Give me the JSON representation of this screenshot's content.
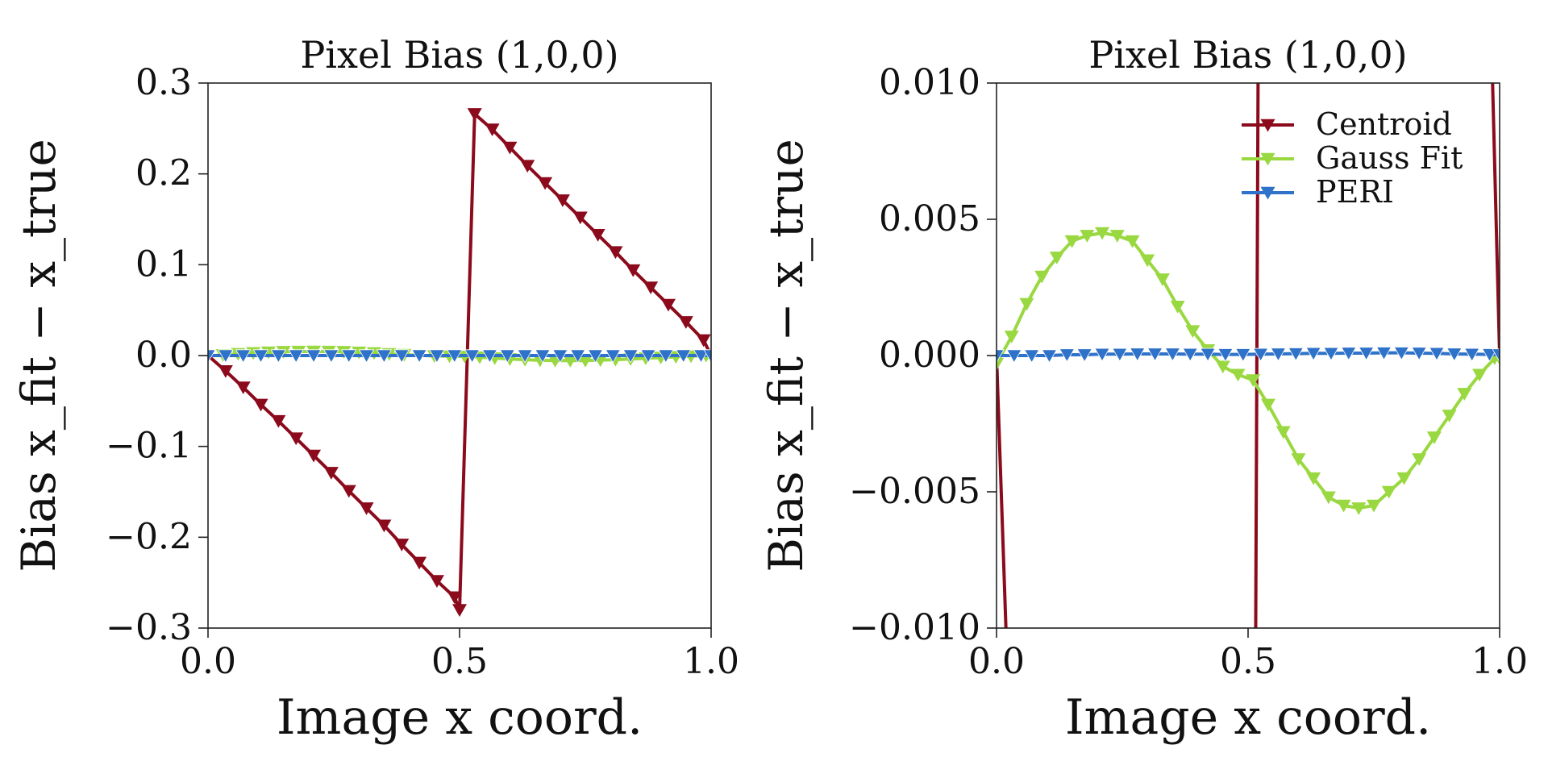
{
  "chart_data": [
    {
      "type": "line",
      "title": "Pixel Bias (1,0,0)",
      "xlabel": "Image x coord.",
      "ylabel": "Bias x_fit − x_true",
      "xlim": [
        0.0,
        1.0
      ],
      "ylim": [
        -0.3,
        0.3
      ],
      "xticks": [
        0.0,
        0.5,
        1.0
      ],
      "xtick_labels": [
        "0.0",
        "0.5",
        "1.0"
      ],
      "yticks": [
        0.3,
        0.2,
        0.1,
        0.0,
        -0.1,
        -0.2,
        -0.3
      ],
      "ytick_labels": [
        "0.3",
        "0.2",
        "0.1",
        "0.0",
        "−0.1",
        "−0.2",
        "−0.3"
      ],
      "grid": false,
      "legend": "none",
      "series": [
        {
          "name": "Centroid",
          "color": "#8b0a1c",
          "marker": "triangle-down",
          "x": [
            0.0,
            0.035,
            0.07,
            0.105,
            0.14,
            0.175,
            0.21,
            0.245,
            0.28,
            0.315,
            0.35,
            0.385,
            0.42,
            0.455,
            0.49,
            0.5,
            0.53,
            0.565,
            0.6,
            0.635,
            0.67,
            0.705,
            0.74,
            0.775,
            0.81,
            0.845,
            0.88,
            0.915,
            0.95,
            0.985,
            1.0
          ],
          "y": [
            0.0,
            -0.017,
            -0.035,
            -0.054,
            -0.072,
            -0.091,
            -0.11,
            -0.129,
            -0.149,
            -0.168,
            -0.187,
            -0.208,
            -0.228,
            -0.248,
            -0.266,
            -0.28,
            0.266,
            0.249,
            0.229,
            0.209,
            0.19,
            0.171,
            0.152,
            0.133,
            0.114,
            0.094,
            0.075,
            0.056,
            0.037,
            0.017,
            0.0
          ]
        },
        {
          "name": "Gauss Fit",
          "color": "#9ad841",
          "marker": "triangle-down",
          "x": [
            0.0,
            0.03,
            0.06,
            0.09,
            0.12,
            0.15,
            0.18,
            0.21,
            0.24,
            0.27,
            0.3,
            0.33,
            0.36,
            0.39,
            0.42,
            0.45,
            0.48,
            0.51,
            0.54,
            0.57,
            0.6,
            0.63,
            0.66,
            0.69,
            0.72,
            0.75,
            0.78,
            0.81,
            0.84,
            0.87,
            0.9,
            0.93,
            0.96,
            0.99,
            1.0
          ],
          "y": [
            -0.0003,
            0.0007,
            0.0019,
            0.0029,
            0.0036,
            0.0042,
            0.0044,
            0.0045,
            0.0044,
            0.0042,
            0.0035,
            0.0028,
            0.0018,
            0.0009,
            0.0002,
            -0.0004,
            -0.0007,
            -0.0009,
            -0.0018,
            -0.0028,
            -0.0038,
            -0.0045,
            -0.0052,
            -0.0055,
            -0.0056,
            -0.0055,
            -0.005,
            -0.0045,
            -0.0038,
            -0.003,
            -0.0022,
            -0.0014,
            -0.0007,
            -0.0001,
            -0.0001
          ]
        },
        {
          "name": "PERI",
          "color": "#2f72c9",
          "marker": "triangle-down",
          "x": [
            0.0,
            0.035,
            0.07,
            0.105,
            0.14,
            0.175,
            0.21,
            0.245,
            0.28,
            0.315,
            0.35,
            0.385,
            0.42,
            0.455,
            0.49,
            0.525,
            0.56,
            0.595,
            0.63,
            0.665,
            0.7,
            0.735,
            0.77,
            0.805,
            0.84,
            0.875,
            0.91,
            0.945,
            0.98,
            1.0
          ],
          "y": [
            0.0,
            0.0,
            0.0,
            0.0,
            0.0,
            0.0,
            0.0,
            0.0,
            0.0,
            0.0,
            0.0,
            0.0,
            0.0,
            0.0,
            0.0,
            0.0,
            0.0,
            0.0,
            0.0,
            0.0,
            0.0,
            0.0,
            0.0,
            0.0,
            0.0,
            0.0,
            0.0,
            0.0,
            0.0,
            0.0
          ]
        }
      ]
    },
    {
      "type": "line",
      "title": "Pixel Bias (1,0,0)",
      "xlabel": "Image x coord.",
      "ylabel": "Bias x_fit − x_true",
      "xlim": [
        0.0,
        1.0
      ],
      "ylim": [
        -0.01,
        0.01
      ],
      "xticks": [
        0.0,
        0.5,
        1.0
      ],
      "xtick_labels": [
        "0.0",
        "0.5",
        "1.0"
      ],
      "yticks": [
        0.01,
        0.005,
        0.0,
        -0.005,
        -0.01
      ],
      "ytick_labels": [
        "0.010",
        "0.005",
        "0.000",
        "−0.005",
        "−0.010"
      ],
      "grid": false,
      "legend": "top-right",
      "series": [
        {
          "name": "Centroid",
          "color": "#8b0a1c",
          "marker": "triangle-down",
          "x": [
            0.0,
            0.02,
            0.515,
            0.52,
            0.985,
            1.0
          ],
          "y": [
            0.0,
            -0.0107,
            -0.0107,
            0.0107,
            0.0107,
            0.0
          ]
        },
        {
          "name": "Gauss Fit",
          "color": "#9ad841",
          "marker": "triangle-down",
          "x": [
            0.0,
            0.03,
            0.06,
            0.09,
            0.12,
            0.15,
            0.18,
            0.21,
            0.24,
            0.27,
            0.3,
            0.33,
            0.36,
            0.39,
            0.42,
            0.45,
            0.48,
            0.51,
            0.54,
            0.57,
            0.6,
            0.63,
            0.66,
            0.69,
            0.72,
            0.75,
            0.78,
            0.81,
            0.84,
            0.87,
            0.9,
            0.93,
            0.96,
            0.99,
            1.0
          ],
          "y": [
            -0.0003,
            0.0007,
            0.0019,
            0.0029,
            0.0036,
            0.0042,
            0.0044,
            0.0045,
            0.0044,
            0.0042,
            0.0035,
            0.0028,
            0.0018,
            0.0009,
            0.0002,
            -0.0004,
            -0.0007,
            -0.0009,
            -0.0018,
            -0.0028,
            -0.0038,
            -0.0045,
            -0.0052,
            -0.0055,
            -0.0056,
            -0.0055,
            -0.005,
            -0.0045,
            -0.0038,
            -0.003,
            -0.0022,
            -0.0014,
            -0.0007,
            -0.0001,
            -0.0001
          ]
        },
        {
          "name": "PERI",
          "color": "#2f72c9",
          "marker": "triangle-down",
          "x": [
            0.0,
            0.035,
            0.07,
            0.105,
            0.14,
            0.175,
            0.21,
            0.245,
            0.28,
            0.315,
            0.35,
            0.385,
            0.42,
            0.455,
            0.49,
            0.525,
            0.56,
            0.595,
            0.63,
            0.665,
            0.7,
            0.735,
            0.77,
            0.805,
            0.84,
            0.875,
            0.91,
            0.945,
            0.98,
            1.0
          ],
          "y": [
            0.0,
            0.0,
            0.0,
            0.0,
            3e-05,
            3e-05,
            5e-05,
            5e-05,
            6e-05,
            6e-05,
            6e-05,
            5e-05,
            5e-05,
            4e-05,
            4e-05,
            5e-05,
            6e-05,
            7e-05,
            8e-05,
            8e-05,
            9e-05,
            9e-05,
            0.0001,
            0.0001,
            9e-05,
            8e-05,
            6e-05,
            5e-05,
            4e-05,
            3e-05
          ]
        }
      ]
    }
  ]
}
